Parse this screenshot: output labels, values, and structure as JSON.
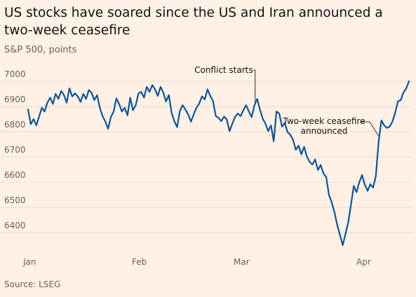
{
  "chart_data": {
    "type": "line",
    "title": "US stocks have soared since the US and Iran announced a two-week ceasefire",
    "subtitle": "S&P 500, points",
    "source": "Source: LSEG",
    "xlabel": "",
    "ylabel": "",
    "ylim": [
      6330,
      7030
    ],
    "yticks": [
      6400,
      6500,
      6600,
      6700,
      6800,
      6900,
      7000
    ],
    "x_tick_labels": [
      "Jan",
      "Feb",
      "Mar",
      "Apr"
    ],
    "grid": "horizontal",
    "line_color": "#0f5499",
    "series": [
      {
        "name": "",
        "values": [
          6888,
          6830,
          6850,
          6825,
          6860,
          6895,
          6880,
          6915,
          6935,
          6910,
          6950,
          6930,
          6962,
          6945,
          6915,
          6972,
          6940,
          6952,
          6940,
          6918,
          6950,
          6930,
          6965,
          6955,
          6925,
          6945,
          6895,
          6862,
          6840,
          6812,
          6858,
          6880,
          6932,
          6910,
          6880,
          6895,
          6865,
          6935,
          6885,
          6905,
          6952,
          6958,
          6935,
          6978,
          6958,
          6985,
          6968,
          6942,
          6978,
          6955,
          6920,
          6945,
          6875,
          6842,
          6818,
          6882,
          6905,
          6888,
          6868,
          6840,
          6868,
          6895,
          6912,
          6940,
          6928,
          6968,
          6942,
          6922,
          6862,
          6855,
          6842,
          6860,
          6848,
          6802,
          6832,
          6858,
          6872,
          6862,
          6885,
          6905,
          6880,
          6858,
          6905,
          6930,
          6888,
          6852,
          6832,
          6802,
          6825,
          6762,
          6880,
          6872,
          6820,
          6835,
          6798,
          6788,
          6768,
          6728,
          6745,
          6710,
          6740,
          6702,
          6680,
          6670,
          6690,
          6648,
          6668,
          6635,
          6620,
          6550,
          6520,
          6480,
          6430,
          6390,
          6350,
          6395,
          6440,
          6512,
          6585,
          6560,
          6600,
          6628,
          6590,
          6565,
          6592,
          6578,
          6625,
          6760,
          6845,
          6825,
          6815,
          6820,
          6840,
          6875,
          6920,
          6925,
          6955,
          6972,
          7000
        ]
      }
    ],
    "annotations": [
      {
        "text": "Conflict starts",
        "x_index": 82
      },
      {
        "text": "Two-week ceasefire",
        "line2": "announced",
        "x_index": 127
      }
    ]
  }
}
